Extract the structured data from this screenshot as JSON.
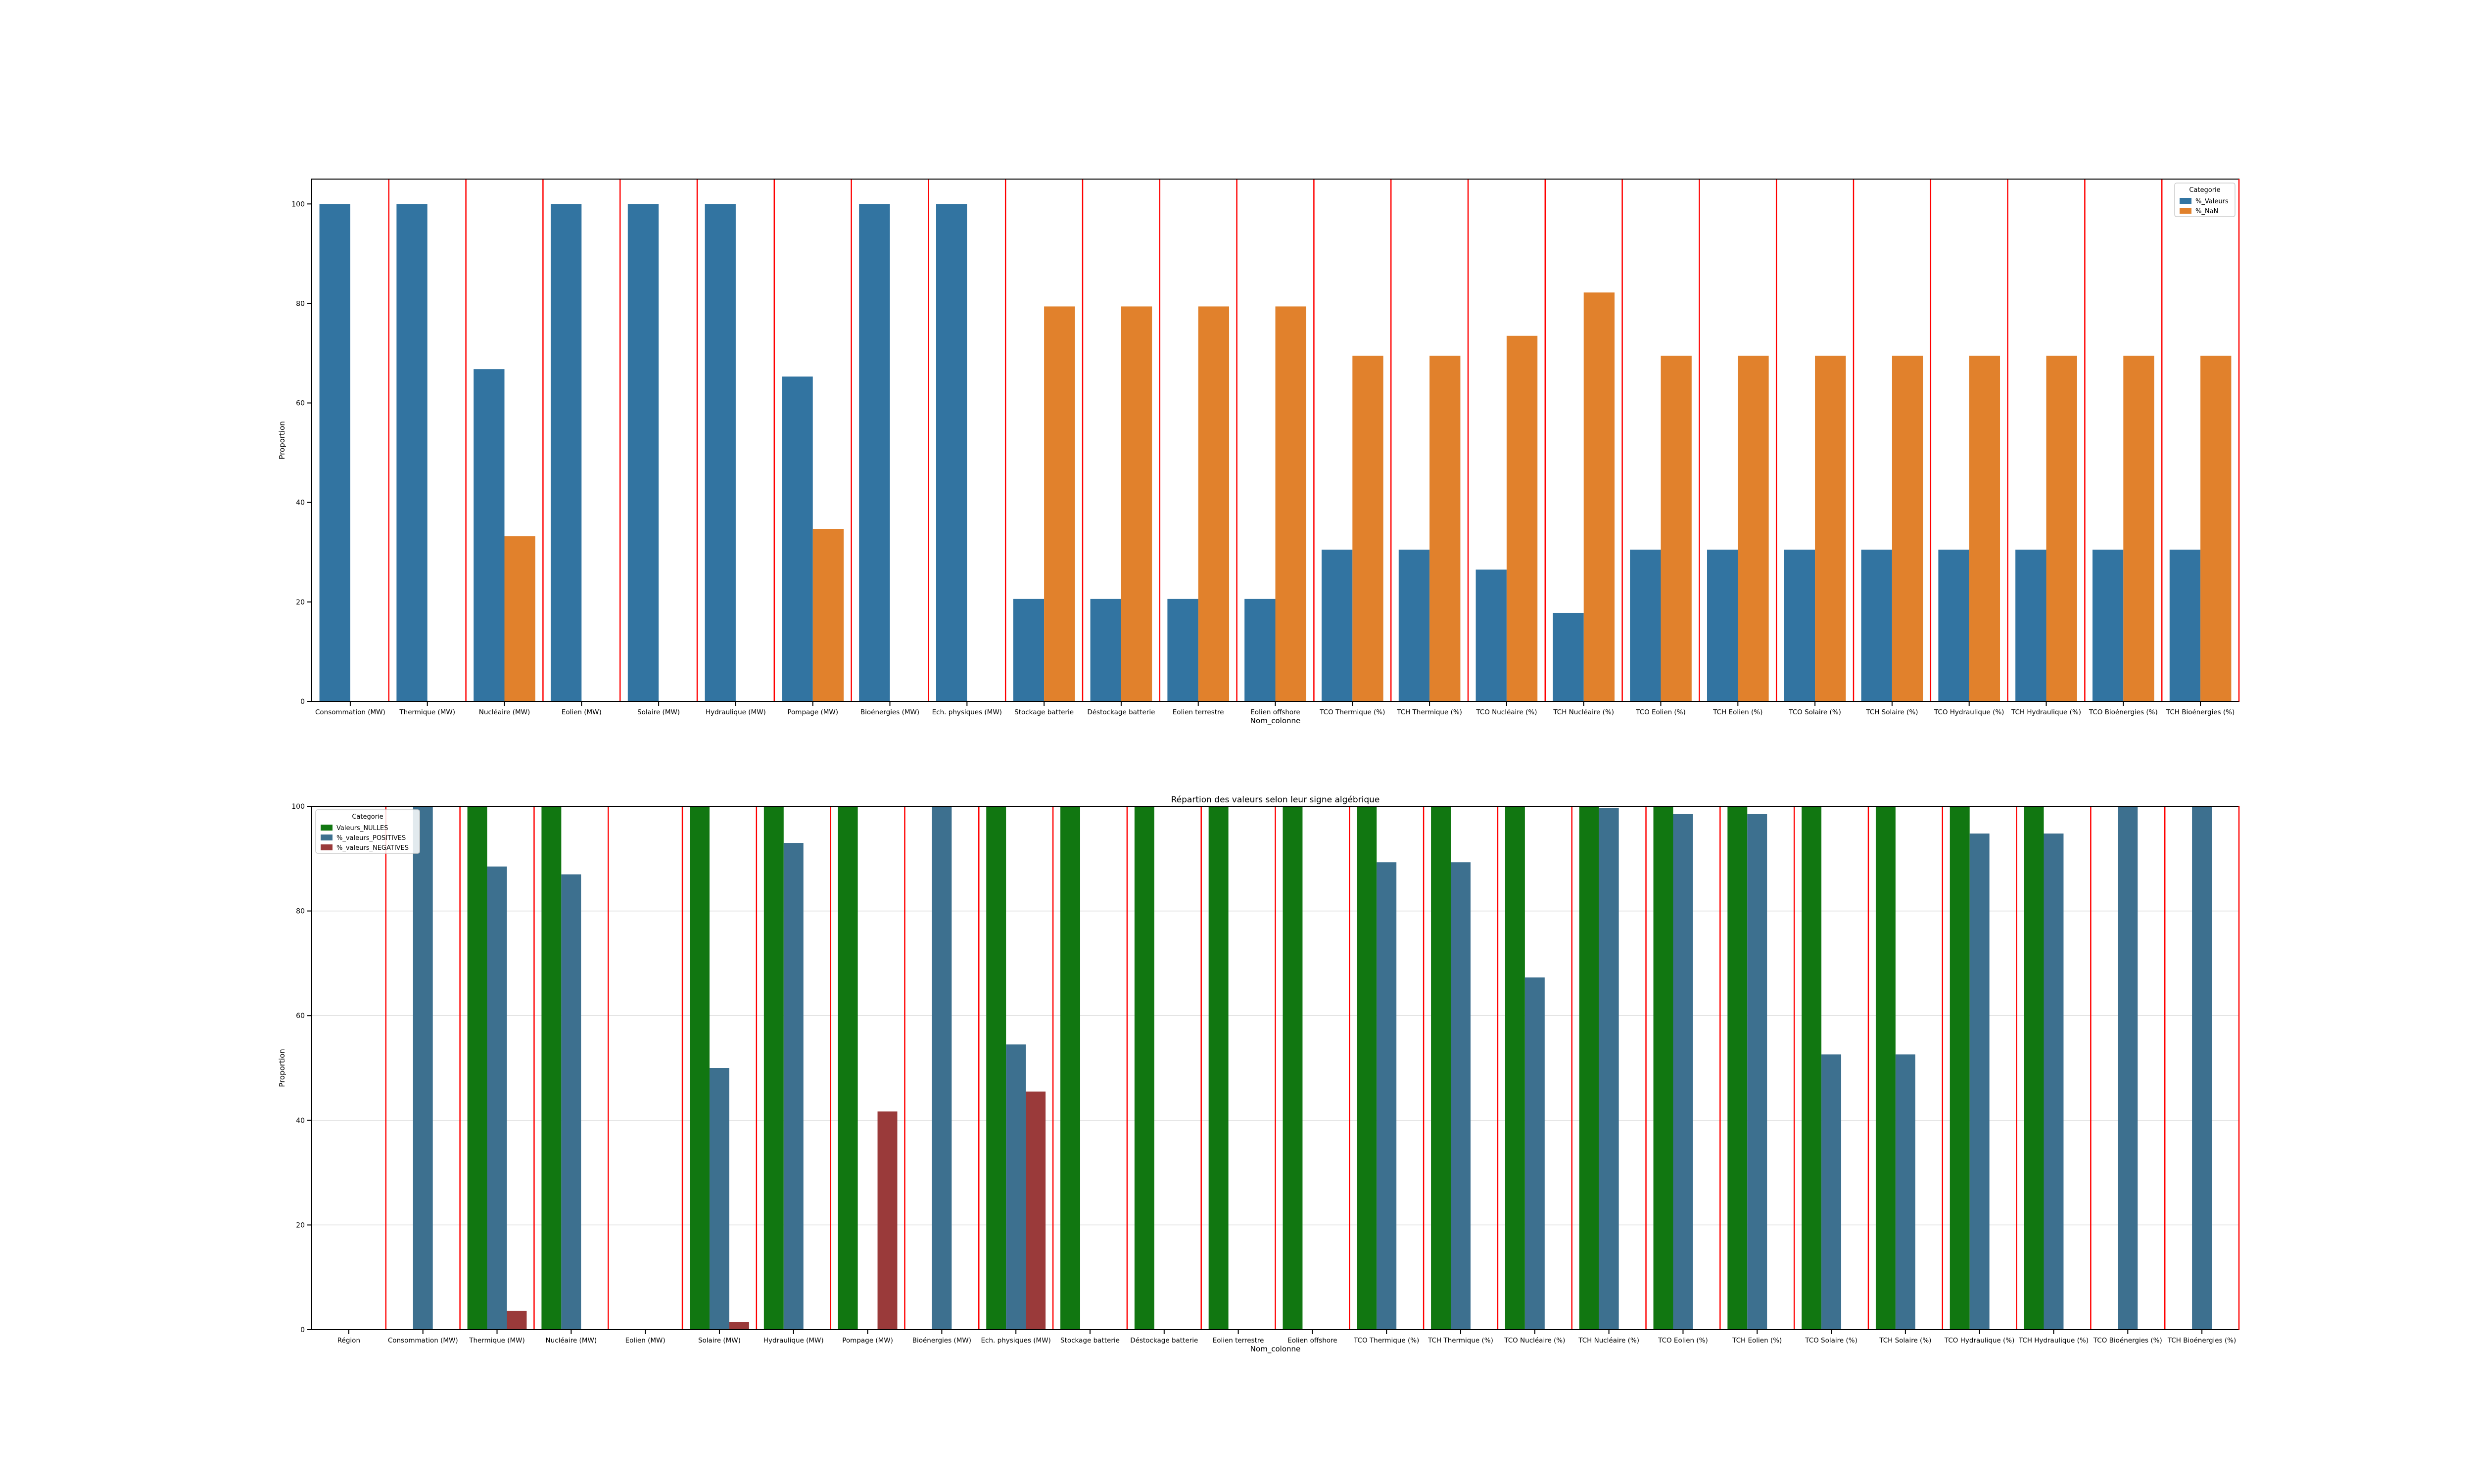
{
  "colors": {
    "valeurs": "#3274a1",
    "nan": "#e1812c",
    "nulles": "#117711",
    "positives": "#3d708f",
    "negatives": "#9a3a3a",
    "separator": "#ff0000",
    "grid": "#d9d9d9"
  },
  "chart_data": [
    {
      "type": "bar",
      "title": "",
      "xlabel": "Nom_colonne",
      "ylabel": "Proportion",
      "ylim": [
        0,
        105
      ],
      "yticks": [
        0,
        20,
        40,
        60,
        80,
        100
      ],
      "grid": false,
      "legend": {
        "title": "Categorie",
        "placement": "top-right"
      },
      "categories": [
        "Consommation (MW)",
        "Thermique (MW)",
        "Nucléaire (MW)",
        "Eolien (MW)",
        "Solaire (MW)",
        "Hydraulique (MW)",
        "Pompage (MW)",
        "Bioénergies (MW)",
        "Ech. physiques (MW)",
        "Stockage batterie",
        "Déstockage batterie",
        "Eolien terrestre",
        "Eolien offshore",
        "TCO Thermique (%)",
        "TCH Thermique (%)",
        "TCO Nucléaire (%)",
        "TCH Nucléaire (%)",
        "TCO Eolien (%)",
        "TCH Eolien (%)",
        "TCO Solaire (%)",
        "TCH Solaire (%)",
        "TCO Hydraulique (%)",
        "TCH Hydraulique (%)",
        "TCO Bioénergies (%)",
        "TCH Bioénergies (%)"
      ],
      "series": [
        {
          "name": "%_Valeurs",
          "color_key": "valeurs",
          "values": [
            100,
            100,
            66.8,
            100,
            100,
            100,
            65.3,
            100,
            100,
            20.6,
            20.6,
            20.6,
            20.6,
            30.5,
            30.5,
            26.5,
            17.8,
            30.5,
            30.5,
            30.5,
            30.5,
            30.5,
            30.5,
            30.5,
            30.5
          ]
        },
        {
          "name": "%_NaN",
          "color_key": "nan",
          "values": [
            0,
            0,
            33.2,
            0,
            0,
            0,
            34.7,
            0,
            0,
            79.4,
            79.4,
            79.4,
            79.4,
            69.5,
            69.5,
            73.5,
            82.2,
            69.5,
            69.5,
            69.5,
            69.5,
            69.5,
            69.5,
            69.5,
            69.5
          ]
        }
      ]
    },
    {
      "type": "bar",
      "title": "Répartion des valeurs selon leur signe algébrique",
      "xlabel": "Nom_colonne",
      "ylabel": "Proportion",
      "ylim": [
        0,
        100
      ],
      "yticks": [
        0,
        20,
        40,
        60,
        80,
        100
      ],
      "grid": true,
      "legend": {
        "title": "Categorie",
        "placement": "top-left"
      },
      "categories": [
        "Région",
        "Consommation (MW)",
        "Thermique (MW)",
        "Nucléaire (MW)",
        "Eolien (MW)",
        "Solaire (MW)",
        "Hydraulique (MW)",
        "Pompage (MW)",
        "Bioénergies (MW)",
        "Ech. physiques (MW)",
        "Stockage batterie",
        "Déstockage batterie",
        "Eolien terrestre",
        "Eolien offshore",
        "TCO Thermique (%)",
        "TCH Thermique (%)",
        "TCO Nucléaire (%)",
        "TCH Nucléaire (%)",
        "TCO Eolien (%)",
        "TCH Eolien (%)",
        "TCO Solaire (%)",
        "TCH Solaire (%)",
        "TCO Hydraulique (%)",
        "TCH Hydraulique (%)",
        "TCO Bioénergies (%)",
        "TCH Bioénergies (%)"
      ],
      "series": [
        {
          "name": "Valeurs_NULLES",
          "color_key": "nulles",
          "values": [
            0,
            0,
            100,
            100,
            0,
            100,
            100,
            100,
            0,
            100,
            100,
            100,
            100,
            100,
            100,
            100,
            100,
            100,
            100,
            100,
            100,
            100,
            100,
            100,
            0,
            0
          ]
        },
        {
          "name": "%_valeurs_POSITIVES",
          "color_key": "positives",
          "values": [
            0,
            100,
            88.5,
            87,
            0,
            50,
            93,
            0,
            100,
            54.5,
            0,
            0,
            0,
            0,
            89.3,
            89.3,
            67.3,
            99.7,
            98.5,
            98.5,
            52.6,
            52.6,
            94.8,
            94.8,
            100,
            100
          ]
        },
        {
          "name": "%_valeurs_NEGATIVES",
          "color_key": "negatives",
          "values": [
            0,
            0,
            3.6,
            0,
            0,
            1.5,
            0,
            41.7,
            0,
            45.5,
            0,
            0,
            0,
            0,
            0,
            0,
            0,
            0,
            0,
            0,
            0,
            0,
            0,
            0,
            0,
            0
          ]
        }
      ]
    }
  ]
}
